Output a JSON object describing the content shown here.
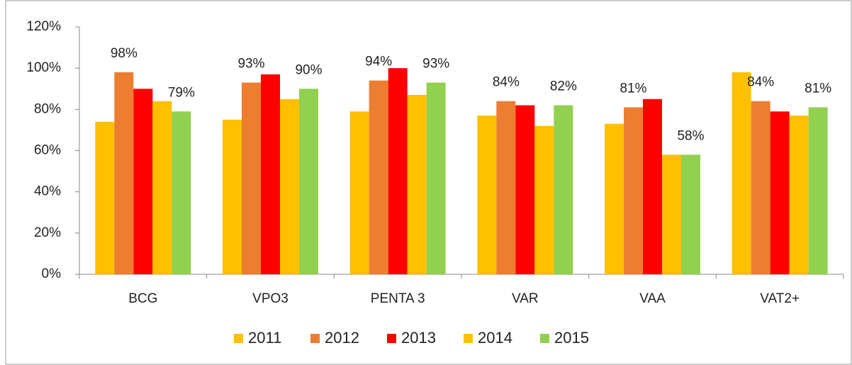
{
  "chart_data": {
    "type": "bar",
    "categories": [
      "BCG",
      "VPO3",
      "PENTA 3",
      "VAR",
      "VAA",
      "VAT2+"
    ],
    "series": [
      {
        "name": "2011",
        "color": "#ffc000",
        "values": [
          74,
          75,
          79,
          77,
          73,
          98
        ]
      },
      {
        "name": "2012",
        "color": "#ed7d31",
        "values": [
          98,
          93,
          94,
          84,
          81,
          84
        ],
        "value_labels": [
          "98%",
          "93%",
          "94%",
          "84%",
          "81%",
          "84%"
        ]
      },
      {
        "name": "2013",
        "color": "#ff0000",
        "values": [
          90,
          97,
          100,
          82,
          85,
          79
        ]
      },
      {
        "name": "2014",
        "color": "#ffc000",
        "values": [
          84,
          85,
          87,
          72,
          58,
          77
        ]
      },
      {
        "name": "2015",
        "color": "#92d050",
        "values": [
          79,
          90,
          93,
          82,
          58,
          81
        ],
        "value_labels": [
          "79%",
          "90%",
          "93%",
          "82%",
          "58%",
          "81%"
        ]
      }
    ],
    "ylim": [
      0,
      120
    ],
    "yticks": [
      {
        "value": 0,
        "label": "0%"
      },
      {
        "value": 20,
        "label": "20%"
      },
      {
        "value": 40,
        "label": "40%"
      },
      {
        "value": 60,
        "label": "60%"
      },
      {
        "value": 80,
        "label": "80%"
      },
      {
        "value": 100,
        "label": "100%"
      },
      {
        "value": 120,
        "label": "120%"
      }
    ],
    "grid": false,
    "legend": "bottom"
  }
}
